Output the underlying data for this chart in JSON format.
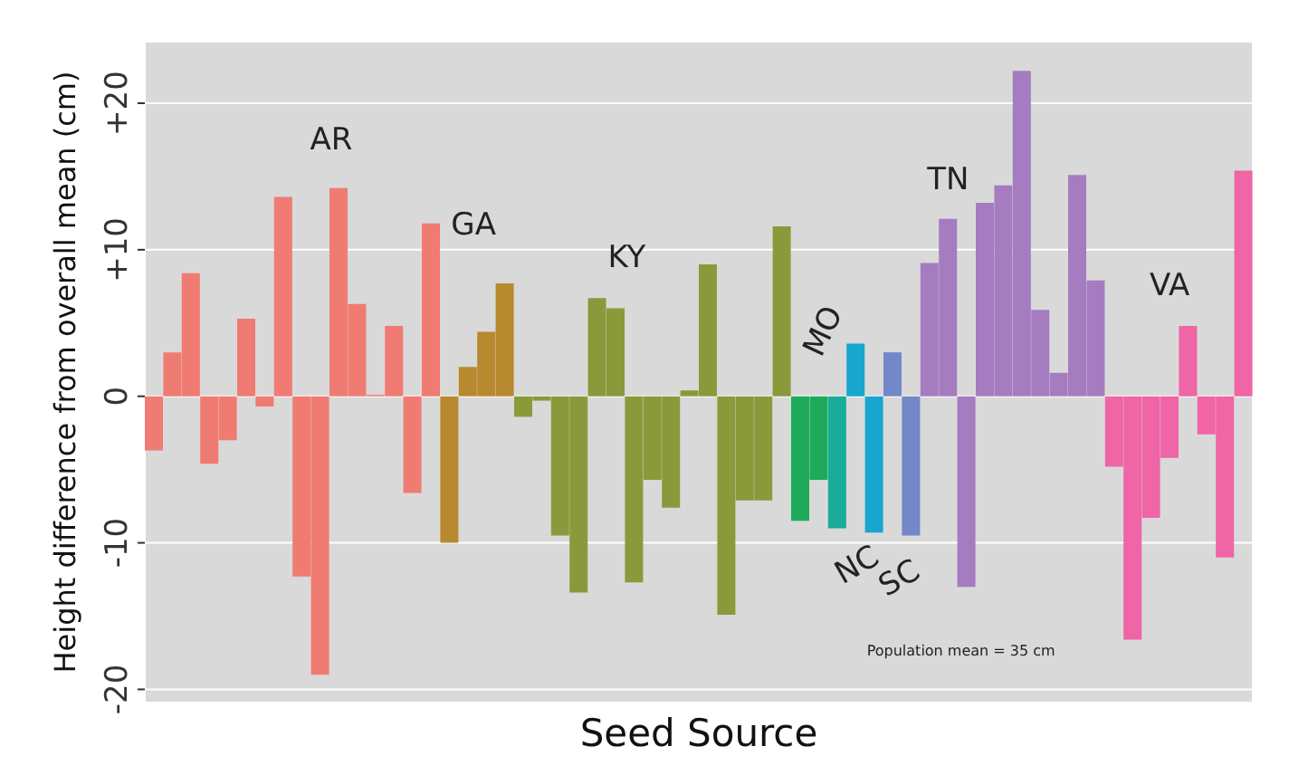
{
  "chart_data": {
    "type": "bar",
    "xlabel": "Seed Source",
    "ylabel": "Height difference from overall mean (cm)",
    "categories": [
      null,
      null,
      null,
      null,
      null,
      null,
      null,
      null,
      null,
      null,
      null,
      null,
      null,
      null,
      null,
      null,
      null,
      null,
      null,
      null,
      null,
      null,
      null,
      null,
      null,
      null,
      null,
      null,
      null,
      null,
      null,
      null,
      null,
      null,
      null,
      null,
      null,
      null,
      null,
      null,
      null,
      null,
      null,
      null,
      null,
      null,
      null,
      null,
      null,
      null,
      null,
      null,
      null,
      null,
      null,
      null,
      null,
      null,
      null,
      null
    ],
    "values": [
      -3.7,
      3,
      8.4,
      -4.6,
      -3,
      5.3,
      -0.7,
      13.6,
      -12.3,
      -19,
      14.2,
      6.3,
      0.1,
      4.8,
      -6.6,
      11.8,
      -10,
      2,
      4.4,
      7.7,
      -1.4,
      -0.3,
      -9.5,
      -13.4,
      6.7,
      6,
      -12.7,
      -5.7,
      -7.6,
      0.4,
      9,
      -14.9,
      -7.1,
      -7.1,
      11.6,
      -8.5,
      -5.7,
      -9,
      3.6,
      -9.3,
      3,
      -9.5,
      9.1,
      12.1,
      -13,
      13.2,
      14.4,
      22.2,
      5.9,
      1.6,
      15.1,
      7.9,
      -4.8,
      -16.6,
      -8.3,
      -4.2,
      4.8,
      -2.6,
      -11,
      15.4
    ],
    "colors": [
      "#f07b72",
      "#f07b72",
      "#f07b72",
      "#f07b72",
      "#f07b72",
      "#f07b72",
      "#f07b72",
      "#f07b72",
      "#f07b72",
      "#f07b72",
      "#f07b72",
      "#f07b72",
      "#f07b72",
      "#f07b72",
      "#f07b72",
      "#f07b72",
      "#b8892e",
      "#b8892e",
      "#b8892e",
      "#b8892e",
      "#8a9a3a",
      "#8a9a3a",
      "#8a9a3a",
      "#8a9a3a",
      "#8a9a3a",
      "#8a9a3a",
      "#8a9a3a",
      "#8a9a3a",
      "#8a9a3a",
      "#8a9a3a",
      "#8a9a3a",
      "#8a9a3a",
      "#8a9a3a",
      "#8a9a3a",
      "#8a9a3a",
      "#1eaa5a",
      "#1eaa5a",
      "#1aab9b",
      "#18a6cf",
      "#18a6cf",
      "#7388c8",
      "#7388c8",
      "#a57cc0",
      "#a57cc0",
      "#a57cc0",
      "#a57cc0",
      "#a57cc0",
      "#a57cc0",
      "#a57cc0",
      "#a57cc0",
      "#a57cc0",
      "#a57cc0",
      "#ef65a6",
      "#ef65a6",
      "#ef65a6",
      "#ef65a6",
      "#ef65a6",
      "#ef65a6",
      "#ef65a6",
      "#ef65a6"
    ],
    "ylim": [
      -20.9,
      24.2
    ],
    "yticks": [
      {
        "value": -20,
        "label": "-20"
      },
      {
        "value": -10,
        "label": "-10"
      },
      0,
      {
        "value": 10,
        "label": "+10"
      },
      {
        "value": 20,
        "label": "+20"
      }
    ],
    "grid": true,
    "tick_labels": "y",
    "annotations": [
      "AR",
      "GA",
      "KY",
      "MO",
      "NC",
      "SC",
      "TN",
      "VA",
      "Population mean = 35 cm"
    ]
  }
}
